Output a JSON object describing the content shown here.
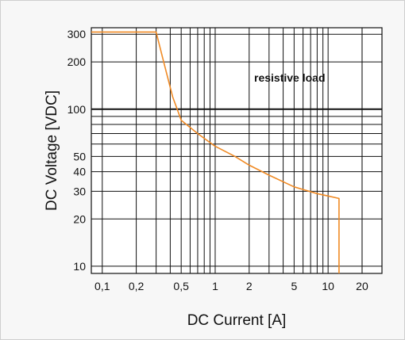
{
  "chart_data": {
    "type": "line",
    "title": "",
    "xlabel": "DC Current [A]",
    "ylabel": "DC Voltage [VDC]",
    "x_scale": "log",
    "y_scale": "log",
    "xlim": [
      0.08,
      30
    ],
    "ylim": [
      9,
      330
    ],
    "grid": true,
    "x_ticks": [
      {
        "value": 0.1,
        "label": "0,1"
      },
      {
        "value": 0.2,
        "label": "0,2"
      },
      {
        "value": 0.5,
        "label": "0,5"
      },
      {
        "value": 1,
        "label": "1"
      },
      {
        "value": 2,
        "label": "2"
      },
      {
        "value": 5,
        "label": "5"
      },
      {
        "value": 10,
        "label": "10"
      },
      {
        "value": 20,
        "label": "20"
      }
    ],
    "y_ticks": [
      {
        "value": 10,
        "label": "10"
      },
      {
        "value": 20,
        "label": "20"
      },
      {
        "value": 30,
        "label": "30"
      },
      {
        "value": 40,
        "label": "40"
      },
      {
        "value": 50,
        "label": "50"
      },
      {
        "value": 100,
        "label": "100"
      },
      {
        "value": 200,
        "label": "200"
      },
      {
        "value": 300,
        "label": "300"
      }
    ],
    "annotations": [
      {
        "text": "resistive load",
        "x": 3.2,
        "y": 130
      }
    ],
    "series": [
      {
        "color": "#f08a24",
        "points": [
          [
            0.08,
            310
          ],
          [
            0.3,
            310
          ],
          [
            0.35,
            200
          ],
          [
            0.42,
            120
          ],
          [
            0.5,
            85
          ],
          [
            0.7,
            70
          ],
          [
            1.0,
            58
          ],
          [
            1.5,
            50
          ],
          [
            2.0,
            44
          ],
          [
            3.0,
            38
          ],
          [
            5.0,
            32
          ],
          [
            8.0,
            29
          ],
          [
            10.0,
            28
          ],
          [
            12.5,
            27
          ],
          [
            12.5,
            9
          ]
        ]
      }
    ]
  }
}
